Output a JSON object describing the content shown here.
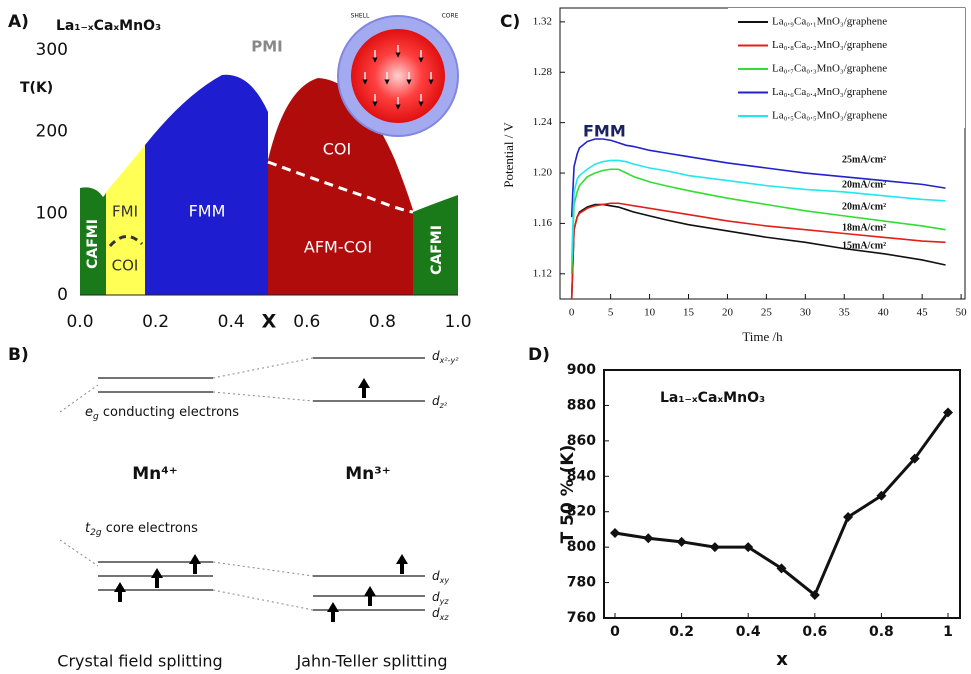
{
  "panel_labels": [
    "A)",
    "B)",
    "C)",
    "D)"
  ],
  "chart_data": [
    {
      "type": "phase",
      "title": "La₁₋ₓCaₓMnO₃",
      "x_label": "X",
      "y_label": "T(K)",
      "xlim": [
        0,
        1
      ],
      "ylim": [
        0,
        300
      ],
      "xticks": [
        {
          "value": 0,
          "label": "0.0"
        },
        0.2,
        0.4,
        0.6,
        0.8,
        {
          "value": 1,
          "label": "1.0"
        }
      ],
      "yticks": [
        0,
        100,
        200,
        300
      ],
      "regions": [
        "PMI",
        "FMI",
        "COI",
        "FMM",
        "COI",
        "AFM-COI",
        "CAFMI",
        "CAFMI"
      ],
      "inset_labels": [
        "SHELL",
        "CORE"
      ]
    },
    {
      "type": "line",
      "x_label": "Time /h",
      "y_label": "Potential / V",
      "xlim": [
        -1.5,
        50.5
      ],
      "ylim": [
        1.1,
        1.331
      ],
      "xticks": [
        0,
        5,
        10,
        15,
        20,
        25,
        30,
        35,
        40,
        45,
        50
      ],
      "yticks": [
        1.12,
        1.16,
        {
          "value": 1.2,
          "label": "1.20"
        },
        1.24,
        1.28,
        1.32
      ],
      "legend": "upper right",
      "annotations": [
        "FMM",
        "25mA/cm²",
        "20mA/cm²",
        "20mA/cm²",
        "18mA/cm²",
        "15mA/cm²"
      ],
      "x": [
        0,
        0.3,
        0.7,
        1,
        2,
        3,
        4,
        5,
        6,
        7,
        8,
        10,
        12,
        15,
        20,
        25,
        30,
        35,
        40,
        45,
        48
      ],
      "series": [
        {
          "name": "La₀.₉Ca₀.₁MnO₃/graphene",
          "color": "#111111",
          "values": [
            1.1,
            1.155,
            1.165,
            1.169,
            1.173,
            1.175,
            1.175,
            1.174,
            1.173,
            1.171,
            1.169,
            1.166,
            1.163,
            1.159,
            1.154,
            1.149,
            1.145,
            1.14,
            1.136,
            1.131,
            1.127
          ]
        },
        {
          "name": "La₀.₈Ca₀.₂MnO₃/graphene",
          "color": "#e0201a",
          "values": [
            1.1,
            1.155,
            1.165,
            1.168,
            1.172,
            1.174,
            1.175,
            1.176,
            1.176,
            1.175,
            1.174,
            1.172,
            1.17,
            1.167,
            1.162,
            1.158,
            1.155,
            1.152,
            1.149,
            1.146,
            1.145
          ]
        },
        {
          "name": "La₀.₇Ca₀.₃MnO₃/graphene",
          "color": "#33dd33",
          "values": [
            1.12,
            1.175,
            1.185,
            1.19,
            1.197,
            1.2,
            1.202,
            1.203,
            1.203,
            1.2,
            1.197,
            1.193,
            1.19,
            1.186,
            1.18,
            1.175,
            1.17,
            1.166,
            1.162,
            1.158,
            1.155
          ]
        },
        {
          "name": "La₀.₆Ca₀.₄MnO₃/graphene",
          "color": "#2222cc",
          "values": [
            1.165,
            1.205,
            1.215,
            1.22,
            1.225,
            1.227,
            1.227,
            1.226,
            1.224,
            1.222,
            1.221,
            1.218,
            1.216,
            1.213,
            1.208,
            1.204,
            1.2,
            1.197,
            1.194,
            1.191,
            1.188
          ]
        },
        {
          "name": "La₀.₅Ca₀.₅MnO₃/graphene",
          "color": "#22e8ee",
          "values": [
            1.13,
            1.185,
            1.195,
            1.198,
            1.203,
            1.207,
            1.209,
            1.21,
            1.21,
            1.209,
            1.207,
            1.204,
            1.202,
            1.198,
            1.194,
            1.19,
            1.187,
            1.185,
            1.182,
            1.179,
            1.178
          ]
        }
      ]
    },
    {
      "type": "line",
      "x_label": "x",
      "y_label": "T 50 % (K)",
      "annotation": "La₁₋ₓCaₓMnO₃",
      "xlim": [
        -0.033,
        1.036
      ],
      "ylim": [
        760,
        900
      ],
      "xticks": [
        0,
        0.2,
        0.4,
        0.6,
        0.8,
        1
      ],
      "yticks": [
        760,
        780,
        800,
        820,
        840,
        860,
        880,
        900
      ],
      "x": [
        0,
        0.1,
        0.2,
        0.3,
        0.4,
        0.5,
        0.6,
        0.7,
        0.8,
        0.9,
        1
      ],
      "series": [
        {
          "color": "#111111",
          "values": [
            808,
            805,
            803,
            800,
            800,
            788,
            773,
            817,
            829,
            850,
            876
          ]
        }
      ]
    }
  ],
  "diagram": {
    "eg": {
      "main": "e",
      "sub": "g",
      "rest": " conducting electrons"
    },
    "t2g": {
      "main": "t",
      "sub": "2g",
      "rest": " core electrons"
    },
    "ion_left": "Mn⁴⁺",
    "ion_right": "Mn³⁺",
    "levels": [
      {
        "main": "d",
        "sub": "x²-y²"
      },
      {
        "main": "d",
        "sub": "z²"
      },
      {
        "main": "d",
        "sub": "xy"
      },
      {
        "main": "d",
        "sub": "yz"
      },
      {
        "main": "d",
        "sub": "xz"
      }
    ],
    "captions": [
      "Crystal field splitting",
      "Jahn-Teller splitting"
    ]
  }
}
